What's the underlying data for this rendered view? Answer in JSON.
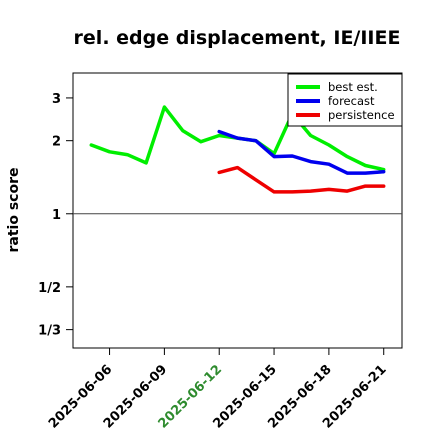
{
  "chart_data": {
    "type": "line",
    "title": "rel. edge displacement, IE/IIEE",
    "ylabel": "ratio score",
    "xlabel": "",
    "y_scale": "log",
    "ylim": [
      0.28,
      3.8
    ],
    "xlim": [
      "2025-06-04",
      "2025-06-22"
    ],
    "y_ticks": [
      {
        "value": 3,
        "label": "3"
      },
      {
        "value": 2,
        "label": "2"
      },
      {
        "value": 1,
        "label": "1"
      },
      {
        "value": 0.5,
        "label": "1/2"
      },
      {
        "value": 0.3333,
        "label": "1/3"
      }
    ],
    "x_ticks": [
      {
        "date": "2025-06-06",
        "label": "2025-06-06",
        "color": "#000000"
      },
      {
        "date": "2025-06-09",
        "label": "2025-06-09",
        "color": "#000000"
      },
      {
        "date": "2025-06-12",
        "label": "2025-06-12",
        "color": "#2e8b2e"
      },
      {
        "date": "2025-06-15",
        "label": "2025-06-15",
        "color": "#000000"
      },
      {
        "date": "2025-06-18",
        "label": "2025-06-18",
        "color": "#000000"
      },
      {
        "date": "2025-06-21",
        "label": "2025-06-21",
        "color": "#000000"
      }
    ],
    "reference_line": 1,
    "legend_position": "top-right",
    "series": [
      {
        "name": "best est.",
        "color": "#00ee00",
        "x": [
          "2025-06-05",
          "2025-06-06",
          "2025-06-07",
          "2025-06-08",
          "2025-06-09",
          "2025-06-10",
          "2025-06-11",
          "2025-06-12",
          "2025-06-13",
          "2025-06-14",
          "2025-06-15",
          "2025-06-16",
          "2025-06-17",
          "2025-06-18",
          "2025-06-19",
          "2025-06-20",
          "2025-06-21"
        ],
        "y": [
          1.92,
          1.8,
          1.75,
          1.62,
          2.75,
          2.2,
          1.98,
          2.1,
          2.05,
          2.0,
          1.77,
          2.58,
          2.1,
          1.92,
          1.72,
          1.58,
          1.52
        ]
      },
      {
        "name": "forecast",
        "color": "#0000ee",
        "x": [
          "2025-06-12",
          "2025-06-13",
          "2025-06-14",
          "2025-06-15",
          "2025-06-16",
          "2025-06-17",
          "2025-06-18",
          "2025-06-19",
          "2025-06-20",
          "2025-06-21"
        ],
        "y": [
          2.18,
          2.05,
          2.0,
          1.72,
          1.73,
          1.64,
          1.6,
          1.47,
          1.47,
          1.49
        ]
      },
      {
        "name": "persistence",
        "color": "#ee0000",
        "x": [
          "2025-06-12",
          "2025-06-13",
          "2025-06-14",
          "2025-06-15",
          "2025-06-16",
          "2025-06-17",
          "2025-06-18",
          "2025-06-19",
          "2025-06-20",
          "2025-06-21"
        ],
        "y": [
          1.48,
          1.55,
          1.38,
          1.23,
          1.23,
          1.24,
          1.26,
          1.24,
          1.3,
          1.3
        ]
      }
    ]
  }
}
